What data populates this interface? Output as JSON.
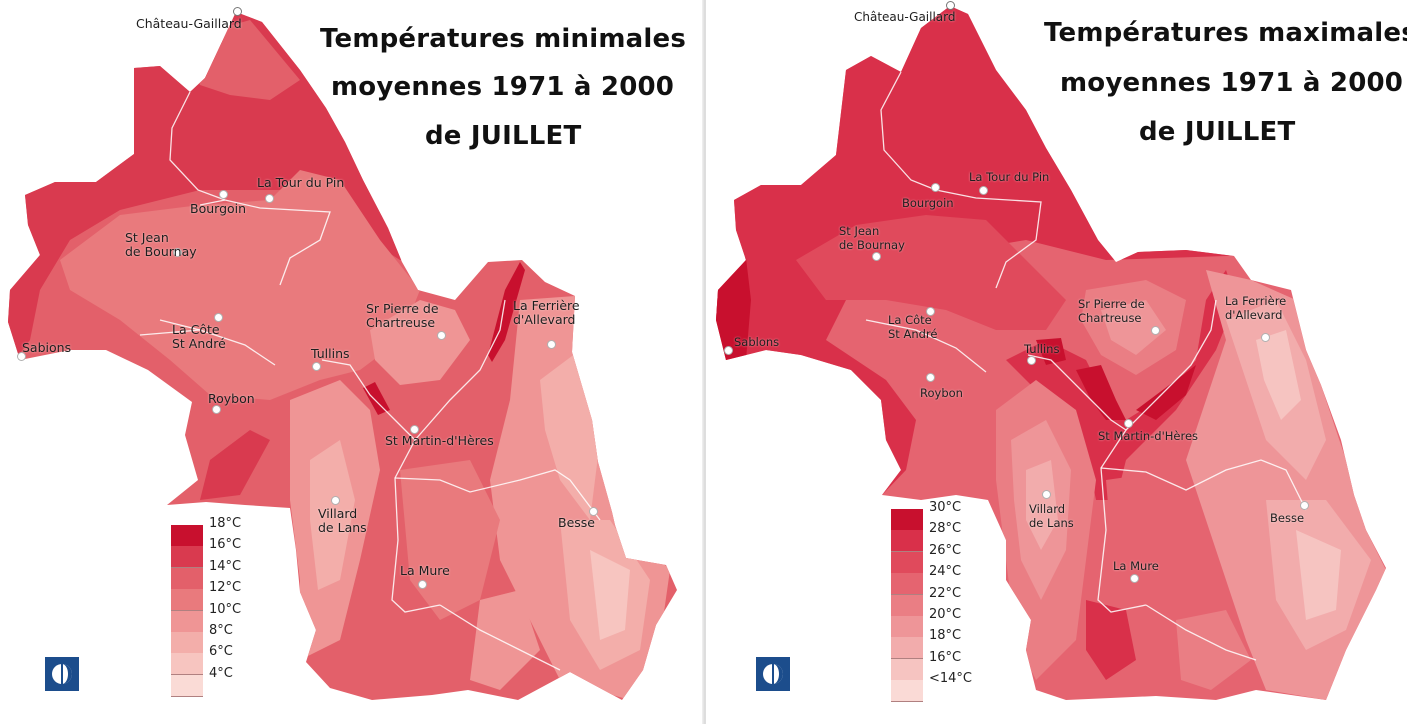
{
  "maps": [
    {
      "title_lines": [
        "Températures minimales",
        "moyennes 1971 à 2000",
        "de JUILLET"
      ],
      "legend": [
        {
          "label": "18°C",
          "color": "#c8102e"
        },
        {
          "label": "16°C",
          "color": "#d93a4f"
        },
        {
          "label": "14°C",
          "color": "#e3606a"
        },
        {
          "label": "12°C",
          "color": "#e97a7d"
        },
        {
          "label": "10°C",
          "color": "#ef9595"
        },
        {
          "label": "8°C",
          "color": "#f3aeaa"
        },
        {
          "label": "6°C",
          "color": "#f7c5c0"
        },
        {
          "label": "4°C",
          "color": "#fadbd6"
        }
      ],
      "cities": [
        "Château-Gaillard",
        "La Tour du Pin",
        "Bourgoin",
        "St Jean\nde Bournay",
        "La Côte\nSt André",
        "Sabions",
        "Roybon",
        "Tullins",
        "Sr Pierre de\nChartreuse",
        "La Ferrière\nd'Allevard",
        "St Martin-d'Hères",
        "Villard\nde Lans",
        "Besse",
        "La Mure"
      ]
    },
    {
      "title_lines": [
        "Températures maximales",
        "moyennes 1971 à 2000",
        "de JUILLET"
      ],
      "legend": [
        {
          "label": "30°C",
          "color": "#c8102e"
        },
        {
          "label": "28°C",
          "color": "#d9304a"
        },
        {
          "label": "26°C",
          "color": "#e04a5c"
        },
        {
          "label": "24°C",
          "color": "#e56470"
        },
        {
          "label": "22°C",
          "color": "#ea7e84"
        },
        {
          "label": "20°C",
          "color": "#ee9598"
        },
        {
          "label": "18°C",
          "color": "#f2acac"
        },
        {
          "label": "16°C",
          "color": "#f6c4c1"
        },
        {
          "label": "<14°C",
          "color": "#fadad6"
        }
      ],
      "cities": [
        "Château-Gaillard",
        "La Tour du Pin",
        "Bourgoin",
        "St Jean\nde Bournay",
        "La Côte\nSt André",
        "Sablons",
        "Roybon",
        "Tullins",
        "Sr Pierre de\nChartreuse",
        "La Ferrière\nd'Allevard",
        "St Martin-d'Hères",
        "Villard\nde Lans",
        "Besse",
        "La Mure"
      ]
    }
  ]
}
